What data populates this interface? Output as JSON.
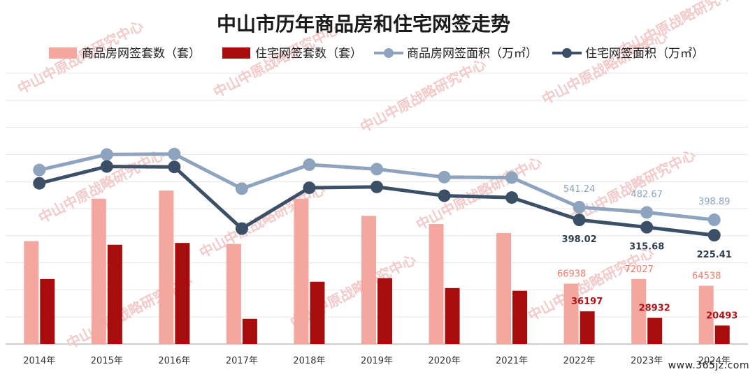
{
  "chart_data": {
    "type": "bar-line",
    "title": "中山市历年商品房和住宅网签走势",
    "categories": [
      "2014年",
      "2015年",
      "2016年",
      "2017年",
      "2018年",
      "2019年",
      "2020年",
      "2021年",
      "2022年",
      "2023年",
      "2024年"
    ],
    "series": [
      {
        "name": "商品房网签套数（套）",
        "kind": "bar",
        "color": "#f4a79f",
        "values": [
          114000,
          161000,
          170000,
          111000,
          161000,
          142000,
          133000,
          123000,
          66938,
          72027,
          64538
        ]
      },
      {
        "name": "住宅网签套数（套）",
        "kind": "bar",
        "color": "#a80d0d",
        "values": [
          72000,
          110000,
          112000,
          28000,
          69000,
          73000,
          62000,
          59000,
          36197,
          28932,
          20493
        ]
      },
      {
        "name": "商品房网签面积（万㎡）",
        "kind": "line",
        "color": "#8ea3be",
        "values": [
          960,
          1135,
          1140,
          750,
          1020,
          970,
          880,
          875,
          541.24,
          482.67,
          398.89
        ]
      },
      {
        "name": "住宅网签面积（万㎡）",
        "kind": "line",
        "color": "#3b4f66",
        "values": [
          810,
          1000,
          995,
          300,
          760,
          770,
          670,
          650,
          398.02,
          315.68,
          225.41
        ]
      }
    ],
    "value_labels": {
      "bar1": [
        "",
        "",
        "",
        "",
        "",
        "",
        "",
        "",
        "66938",
        "72027",
        "64538"
      ],
      "bar2": [
        "",
        "",
        "",
        "",
        "",
        "",
        "",
        "",
        "36197",
        "28932",
        "20493"
      ],
      "line1": [
        "",
        "",
        "",
        "",
        "",
        "",
        "",
        "",
        "541.24",
        "482.67",
        "398.89"
      ],
      "line2": [
        "",
        "",
        "",
        "",
        "",
        "",
        "",
        "",
        "398.02",
        "315.68",
        "225.41"
      ]
    },
    "bar_ylim": [
      0,
      300000
    ],
    "line_ylim": [
      -1000,
      2050
    ],
    "grid": true,
    "legend_position": "top"
  },
  "watermark": "中山中原战略研究中心",
  "footer": "www.365jz.com"
}
